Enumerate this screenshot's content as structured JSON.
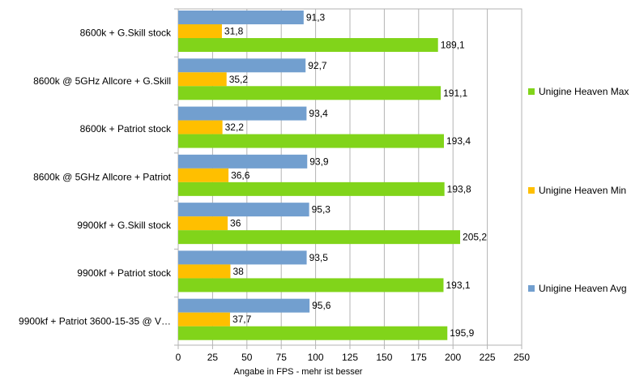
{
  "chart_data": {
    "type": "bar",
    "orientation": "horizontal",
    "title": "",
    "xlabel": "Angabe in FPS - mehr ist besser",
    "ylabel": "",
    "xlim": [
      0,
      250
    ],
    "xticks": [
      0,
      25,
      50,
      75,
      100,
      125,
      150,
      175,
      200,
      225,
      250
    ],
    "grid": true,
    "legend_position": "right",
    "categories": [
      "8600k + G.Skill stock",
      "8600k @ 5GHz Allcore + G.Skill",
      "8600k + Patriot stock",
      "8600k @ 5GHz Allcore + Patriot",
      "9900kf + G.Skill stock",
      "9900kf + Patriot stock",
      "9900kf + Patriot 3600-15-35 @ V…"
    ],
    "series": [
      {
        "name": "Unigine Heaven Avg",
        "color": "#729fcf",
        "values": [
          91.3,
          92.7,
          93.4,
          93.9,
          95.3,
          93.5,
          95.6
        ],
        "labels": [
          "91,3",
          "92,7",
          "93,4",
          "93,9",
          "95,3",
          "93,5",
          "95,6"
        ]
      },
      {
        "name": "Unigine Heaven Min",
        "color": "#ffbf00",
        "values": [
          31.8,
          35.2,
          32.2,
          36.6,
          36,
          38,
          37.7
        ],
        "labels": [
          "31,8",
          "35,2",
          "32,2",
          "36,6",
          "36",
          "38",
          "37,7"
        ]
      },
      {
        "name": "Unigine Heaven Max",
        "color": "#81d41a",
        "values": [
          189.1,
          191.1,
          193.4,
          193.8,
          205.2,
          193.1,
          195.9
        ],
        "labels": [
          "189,1",
          "191,1",
          "193,4",
          "193,8",
          "205,2",
          "193,1",
          "195,9"
        ]
      }
    ],
    "legend_order": [
      "Unigine Heaven Max",
      "Unigine Heaven Min",
      "Unigine Heaven Avg"
    ]
  }
}
